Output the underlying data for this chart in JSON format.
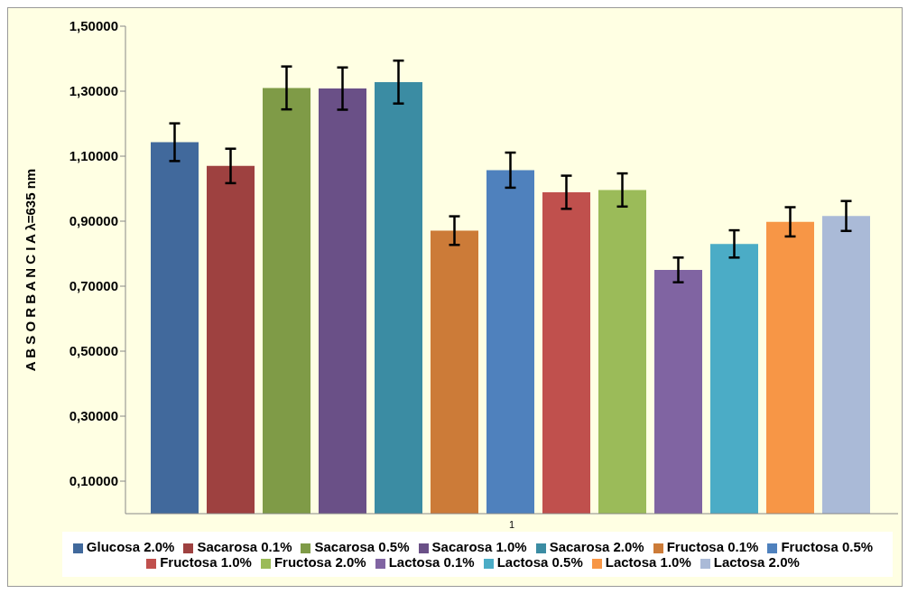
{
  "chart_data": {
    "type": "bar",
    "ylabel": "A B S O R B A N C I A   λ=635 nm",
    "categories": [
      "1"
    ],
    "series": [
      {
        "name": "Glucosa 2.0%",
        "color": "#41699c",
        "values": [
          1.143
        ],
        "errors": [
          0.058
        ]
      },
      {
        "name": "Sacarosa 0.1%",
        "color": "#9e4140",
        "values": [
          1.07
        ],
        "errors": [
          0.053
        ]
      },
      {
        "name": "Sacarosa 0.5%",
        "color": "#7f9b47",
        "values": [
          1.31
        ],
        "errors": [
          0.066
        ]
      },
      {
        "name": "Sacarosa 1.0%",
        "color": "#6a5087",
        "values": [
          1.308
        ],
        "errors": [
          0.065
        ]
      },
      {
        "name": "Sacarosa 2.0%",
        "color": "#3b8ca3",
        "values": [
          1.328
        ],
        "errors": [
          0.066
        ]
      },
      {
        "name": "Fructosa 0.1%",
        "color": "#cc7b38",
        "values": [
          0.871
        ],
        "errors": [
          0.044
        ]
      },
      {
        "name": "Fructosa 0.5%",
        "color": "#4f81bd",
        "values": [
          1.057
        ],
        "errors": [
          0.054
        ]
      },
      {
        "name": "Fructosa 1.0%",
        "color": "#c0504d",
        "values": [
          0.989
        ],
        "errors": [
          0.051
        ]
      },
      {
        "name": "Fructosa 2.0%",
        "color": "#9bbb59",
        "values": [
          0.996
        ],
        "errors": [
          0.051
        ]
      },
      {
        "name": "Lactosa 0.1%",
        "color": "#8064a2",
        "values": [
          0.75
        ],
        "errors": [
          0.038
        ]
      },
      {
        "name": "Lactosa 0.5%",
        "color": "#4bacc6",
        "values": [
          0.83
        ],
        "errors": [
          0.042
        ]
      },
      {
        "name": "Lactosa 1.0%",
        "color": "#f79646",
        "values": [
          0.898
        ],
        "errors": [
          0.045
        ]
      },
      {
        "name": "Lactosa 2.0%",
        "color": "#aabad7",
        "values": [
          0.916
        ],
        "errors": [
          0.046
        ]
      }
    ],
    "ylim": [
      0,
      1.5
    ],
    "yticks": [
      {
        "value": 0.1,
        "label": "0,10000"
      },
      {
        "value": 0.3,
        "label": "0,30000"
      },
      {
        "value": 0.5,
        "label": "0,50000"
      },
      {
        "value": 0.7,
        "label": "0,70000"
      },
      {
        "value": 0.9,
        "label": "0,90000"
      },
      {
        "value": 1.1,
        "label": "1,10000"
      },
      {
        "value": 1.3,
        "label": "1,30000"
      },
      {
        "value": 1.5,
        "label": "1,50000"
      }
    ],
    "grid": false,
    "legend": "bottom"
  }
}
